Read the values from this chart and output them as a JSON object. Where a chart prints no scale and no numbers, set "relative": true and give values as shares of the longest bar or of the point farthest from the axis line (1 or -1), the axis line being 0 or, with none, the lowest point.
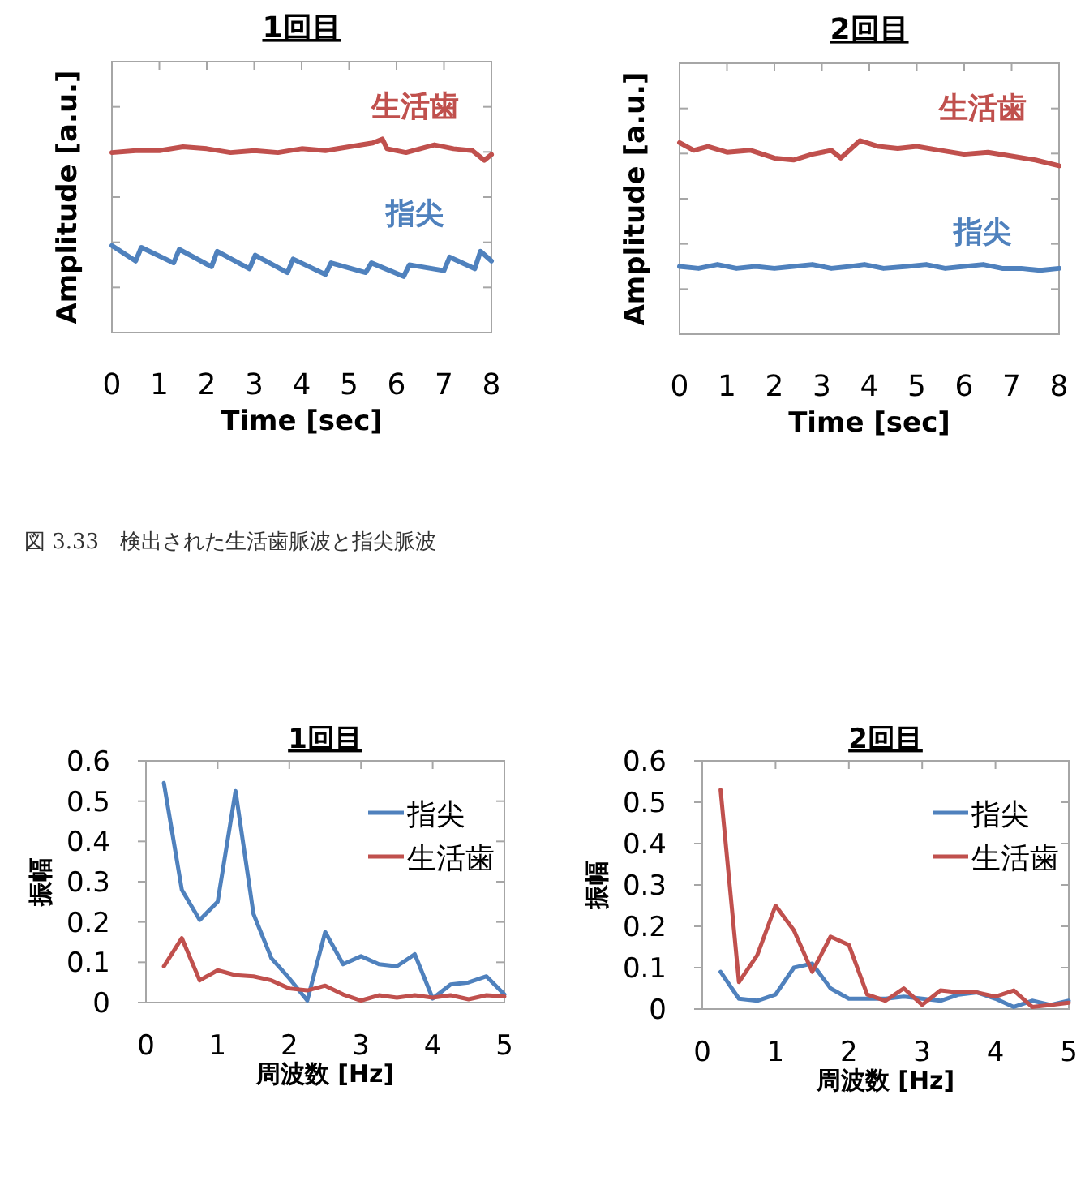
{
  "chart_data": [
    {
      "type": "line",
      "title": "1回目",
      "xlabel": "Time [sec]",
      "ylabel": "Amplitude [a.u.]",
      "relative": true,
      "xlim": [
        0,
        8
      ],
      "xticks": [
        0,
        1,
        2,
        3,
        4,
        5,
        6,
        7,
        8
      ],
      "annotations": [
        "図 3.33　検出された生活歯脈波と指尖脈波"
      ],
      "series": [
        {
          "name": "生活歯",
          "color": "#c0504d",
          "x": [
            0,
            0.5,
            1,
            1.5,
            2,
            2.5,
            3,
            3.5,
            4,
            4.5,
            5,
            5.5,
            5.7,
            5.8,
            6.2,
            6.8,
            7.2,
            7.6,
            7.85,
            8
          ],
          "values": [
            0.93,
            0.94,
            0.94,
            0.96,
            0.95,
            0.93,
            0.94,
            0.93,
            0.95,
            0.94,
            0.96,
            0.98,
            1.0,
            0.95,
            0.93,
            0.97,
            0.95,
            0.94,
            0.89,
            0.92
          ]
        },
        {
          "name": "指尖",
          "color": "#4f81bd",
          "x": [
            0,
            0.5,
            0.62,
            1.3,
            1.42,
            2.1,
            2.22,
            2.9,
            3.02,
            3.7,
            3.82,
            4.5,
            4.62,
            5.35,
            5.47,
            6.15,
            6.27,
            7.0,
            7.12,
            7.65,
            7.77,
            8
          ],
          "values": [
            0.45,
            0.37,
            0.44,
            0.36,
            0.43,
            0.34,
            0.42,
            0.33,
            0.4,
            0.31,
            0.38,
            0.3,
            0.36,
            0.31,
            0.36,
            0.29,
            0.35,
            0.32,
            0.39,
            0.33,
            0.42,
            0.37
          ]
        }
      ]
    },
    {
      "type": "line",
      "title": "2回目",
      "xlabel": "Time [sec]",
      "ylabel": "Amplitude [a.u.]",
      "relative": true,
      "xlim": [
        0,
        8
      ],
      "xticks": [
        0,
        1,
        2,
        3,
        4,
        5,
        6,
        7,
        8
      ],
      "series": [
        {
          "name": "生活歯",
          "color": "#c0504d",
          "x": [
            0,
            0.3,
            0.6,
            1,
            1.5,
            2,
            2.4,
            2.8,
            3.2,
            3.4,
            3.8,
            4.2,
            4.6,
            5,
            5.5,
            6,
            6.5,
            7,
            7.5,
            8
          ],
          "values": [
            0.99,
            0.95,
            0.97,
            0.94,
            0.95,
            0.91,
            0.9,
            0.93,
            0.95,
            0.91,
            1.0,
            0.97,
            0.96,
            0.97,
            0.95,
            0.93,
            0.94,
            0.92,
            0.9,
            0.87
          ]
        },
        {
          "name": "指尖",
          "color": "#4f81bd",
          "x": [
            0,
            0.4,
            0.8,
            1.2,
            1.6,
            2,
            2.4,
            2.8,
            3.2,
            3.6,
            3.9,
            4.3,
            4.8,
            5.2,
            5.6,
            6,
            6.4,
            6.8,
            7.2,
            7.6,
            8
          ],
          "values": [
            0.35,
            0.34,
            0.36,
            0.34,
            0.35,
            0.34,
            0.35,
            0.36,
            0.34,
            0.35,
            0.36,
            0.34,
            0.35,
            0.36,
            0.34,
            0.35,
            0.36,
            0.34,
            0.34,
            0.33,
            0.34
          ]
        }
      ]
    },
    {
      "type": "line",
      "title": "1回目",
      "xlabel": "周波数 [Hz]",
      "ylabel": "振幅",
      "xlim": [
        0,
        5
      ],
      "xticks": [
        0,
        1,
        2,
        3,
        4,
        5
      ],
      "ylim": [
        0,
        0.6
      ],
      "yticks": [
        0,
        0.1,
        0.2,
        0.3,
        0.4,
        0.5,
        0.6
      ],
      "legend": "top right",
      "x": [
        0.25,
        0.5,
        0.75,
        1,
        1.25,
        1.5,
        1.75,
        2,
        2.25,
        2.5,
        2.75,
        3,
        3.25,
        3.5,
        3.75,
        4,
        4.25,
        4.5,
        4.75,
        5
      ],
      "series": [
        {
          "name": "指尖",
          "color": "#4f81bd",
          "values": [
            0.545,
            0.28,
            0.205,
            0.25,
            0.525,
            0.22,
            0.11,
            0.06,
            0.005,
            0.175,
            0.095,
            0.115,
            0.095,
            0.09,
            0.12,
            0.01,
            0.045,
            0.05,
            0.065,
            0.02
          ]
        },
        {
          "name": "生活歯",
          "color": "#c0504d",
          "values": [
            0.09,
            0.16,
            0.055,
            0.08,
            0.068,
            0.065,
            0.055,
            0.035,
            0.03,
            0.042,
            0.02,
            0.005,
            0.018,
            0.012,
            0.018,
            0.012,
            0.018,
            0.008,
            0.018,
            0.015
          ]
        }
      ]
    },
    {
      "type": "line",
      "title": "2回目",
      "xlabel": "周波数 [Hz]",
      "ylabel": "振幅",
      "xlim": [
        0,
        5
      ],
      "xticks": [
        0,
        1,
        2,
        3,
        4,
        5
      ],
      "ylim": [
        0,
        0.6
      ],
      "yticks": [
        0,
        0.1,
        0.2,
        0.3,
        0.4,
        0.5,
        0.6
      ],
      "legend": "top right",
      "x": [
        0.25,
        0.5,
        0.75,
        1,
        1.25,
        1.5,
        1.75,
        2,
        2.25,
        2.5,
        2.75,
        3,
        3.25,
        3.5,
        3.75,
        4,
        4.25,
        4.5,
        4.75,
        5
      ],
      "series": [
        {
          "name": "指尖",
          "color": "#4f81bd",
          "values": [
            0.09,
            0.025,
            0.02,
            0.035,
            0.1,
            0.11,
            0.05,
            0.025,
            0.025,
            0.025,
            0.03,
            0.025,
            0.02,
            0.035,
            0.04,
            0.025,
            0.005,
            0.02,
            0.01,
            0.02
          ]
        },
        {
          "name": "生活歯",
          "color": "#c0504d",
          "values": [
            0.53,
            0.065,
            0.13,
            0.25,
            0.19,
            0.09,
            0.175,
            0.155,
            0.035,
            0.02,
            0.05,
            0.01,
            0.045,
            0.04,
            0.04,
            0.03,
            0.045,
            0.005,
            0.01,
            0.015
          ]
        }
      ]
    }
  ]
}
